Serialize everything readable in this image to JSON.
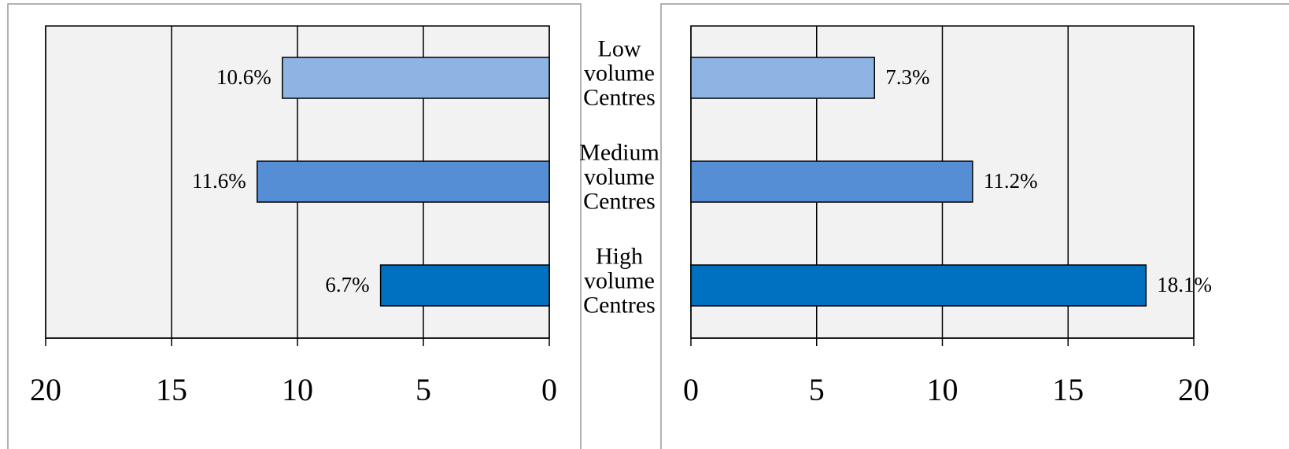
{
  "chart_data": [
    {
      "type": "bar",
      "orientation": "horizontal",
      "categories": [
        "Low volume Centres",
        "Medium volume Centres",
        "High volume Centres"
      ],
      "values": [
        10.6,
        11.6,
        6.7
      ],
      "value_labels": [
        "10.6%",
        "11.6%",
        "6.7%"
      ],
      "colors": [
        "#8eb4e3",
        "#558ed5",
        "#0070c0"
      ],
      "xlim": [
        20,
        0
      ],
      "xticks": [
        20,
        15,
        10,
        5,
        0
      ],
      "grid": true
    },
    {
      "type": "bar",
      "orientation": "horizontal",
      "values": [
        7.3,
        11.2,
        18.1
      ],
      "value_labels": [
        "7.3%",
        "11.2%",
        "18.1%"
      ],
      "colors": [
        "#8eb4e3",
        "#558ed5",
        "#0070c0"
      ],
      "xlim": [
        0,
        20
      ],
      "xticks": [
        0,
        5,
        10,
        15,
        20
      ],
      "grid": true
    }
  ]
}
